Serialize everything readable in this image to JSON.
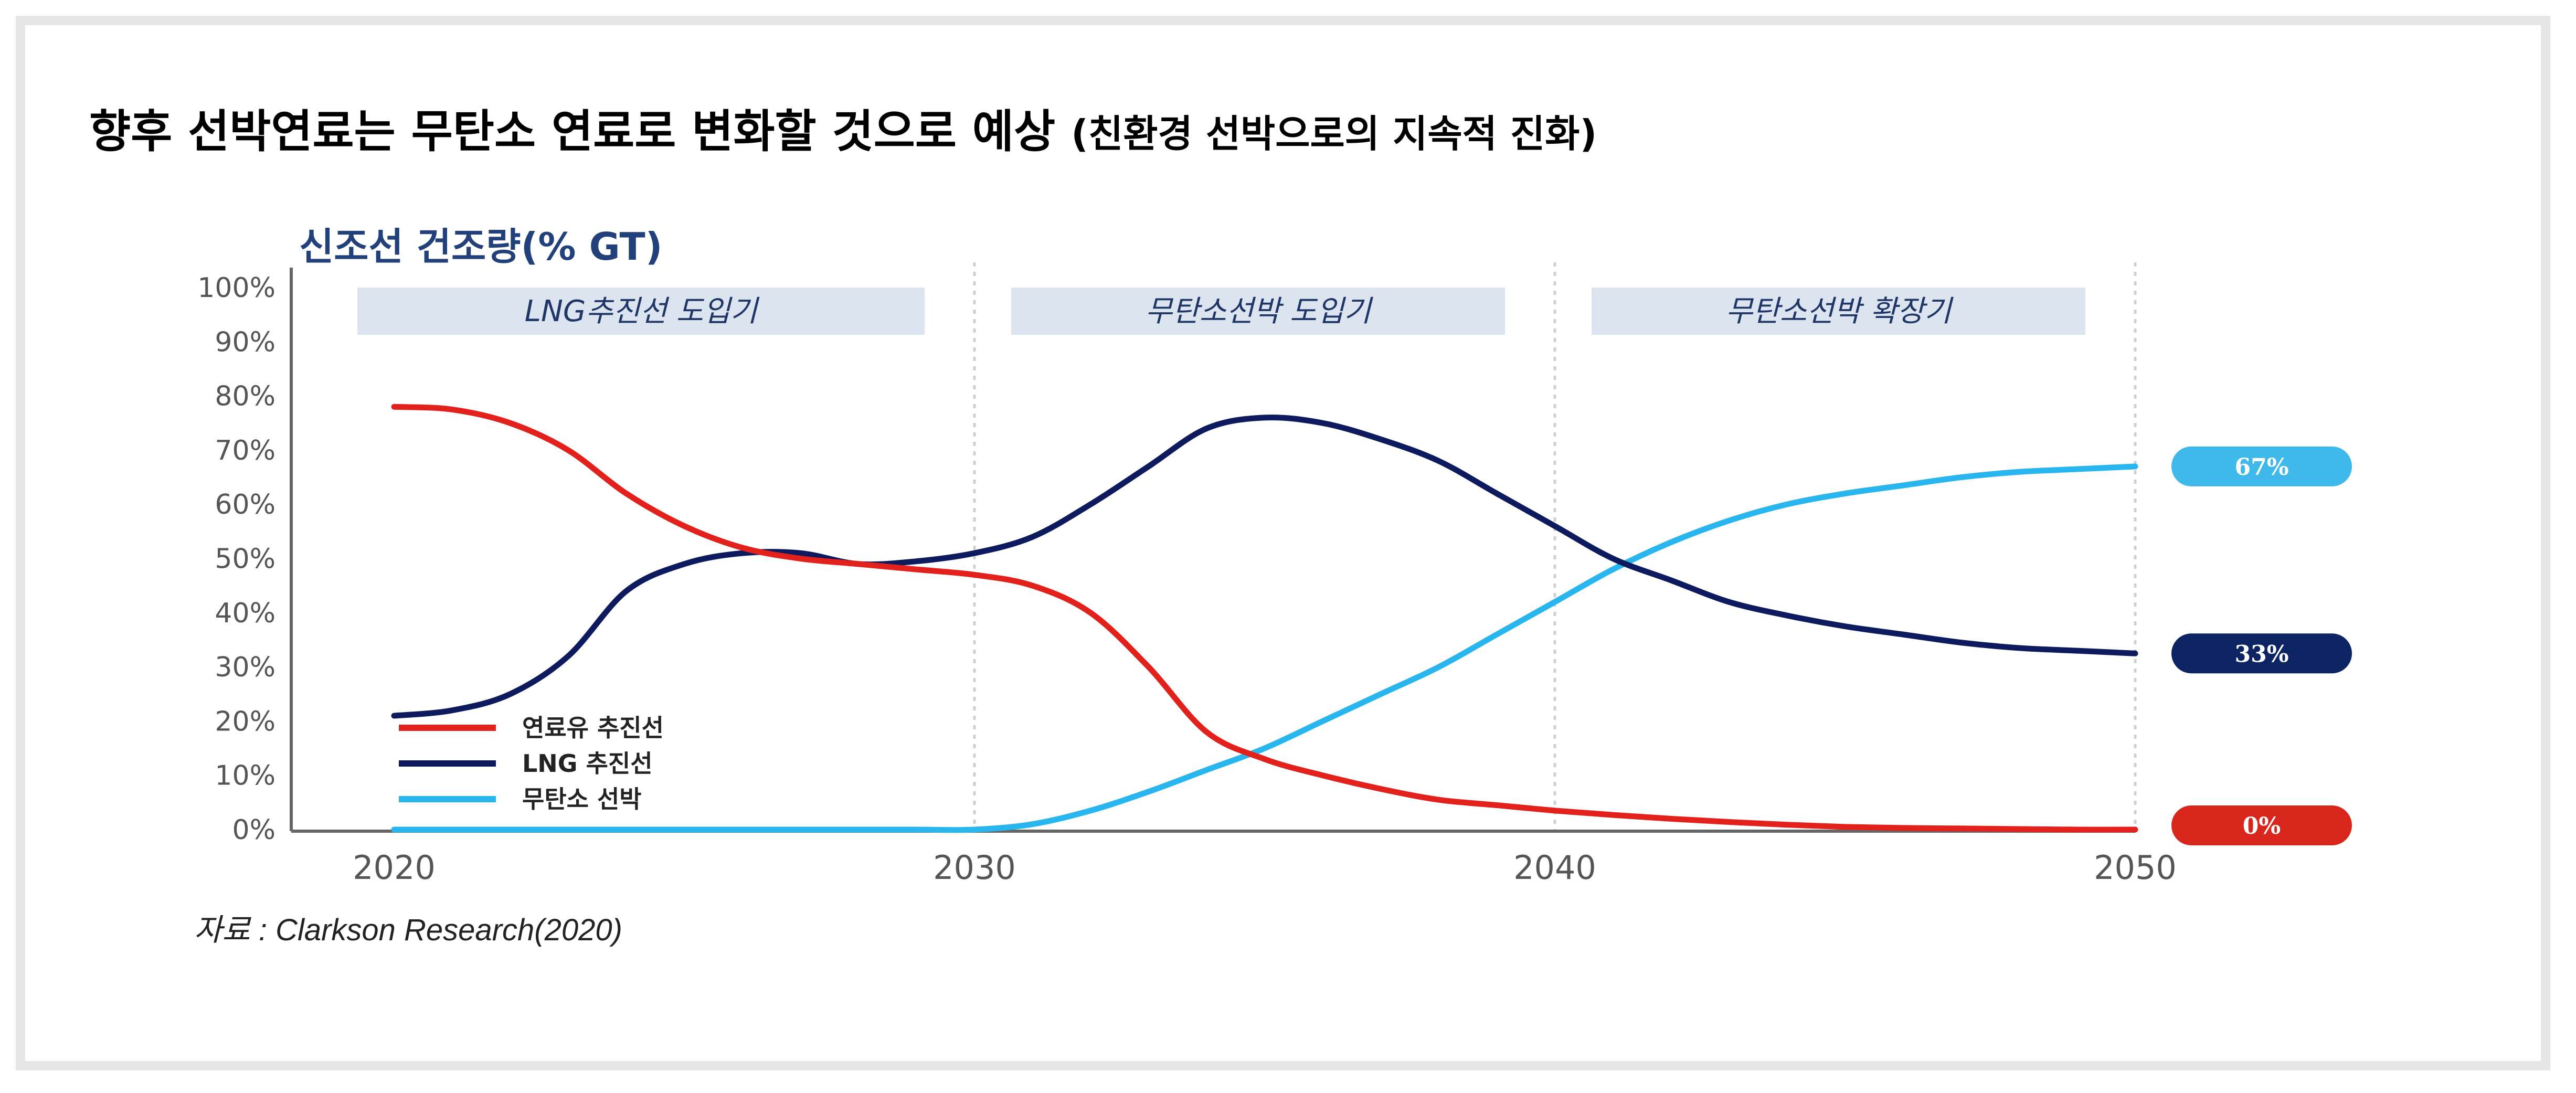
{
  "header": {
    "title": "향후 선박연료는 무탄소 연료로 변화할 것으로 예상",
    "subtitle": "(친환경 선박으로의 지속적 진화)"
  },
  "source": "자료 : Clarkson Research(2020)",
  "chart_data": {
    "type": "line",
    "title": "신조선 건조량(% GT)",
    "xlabel": "",
    "ylabel": "",
    "xlim": [
      2020,
      2050
    ],
    "ylim": [
      0,
      100
    ],
    "x_ticks": [
      "2020",
      "2030",
      "2040",
      "2050"
    ],
    "y_ticks": [
      "0%",
      "10%",
      "20%",
      "30%",
      "40%",
      "50%",
      "60%",
      "70%",
      "80%",
      "90%",
      "100%"
    ],
    "grid": "vertical dotted lines at 2030, 2040, 2050",
    "legend_position": "bottom-left",
    "phases": [
      {
        "label": "LNG추진선 도입기",
        "from": 2020,
        "to": 2030
      },
      {
        "label": "무탄소선박 도입기",
        "from": 2030,
        "to": 2040
      },
      {
        "label": "무탄소선박 확장기",
        "from": 2040,
        "to": 2050
      }
    ],
    "x": [
      2020,
      2021,
      2022,
      2023,
      2024,
      2025,
      2026,
      2027,
      2028,
      2029,
      2030,
      2031,
      2032,
      2033,
      2034,
      2035,
      2036,
      2037,
      2038,
      2039,
      2040,
      2041,
      2042,
      2043,
      2044,
      2045,
      2046,
      2047,
      2048,
      2049,
      2050
    ],
    "series": [
      {
        "name": "연료유 추진선",
        "color": "#e3211c",
        "end_label": "0%",
        "values": [
          78,
          77.5,
          75,
          70,
          62,
          56,
          52,
          50,
          49,
          48,
          47,
          45,
          40,
          30,
          18,
          13,
          10,
          7.5,
          5.5,
          4.5,
          3.5,
          2.7,
          2,
          1.4,
          0.9,
          0.5,
          0.3,
          0.2,
          0.1,
          0,
          0
        ]
      },
      {
        "name": "LNG 추진선",
        "color": "#0d1b5e",
        "end_label": "33%",
        "values": [
          21,
          22,
          25,
          32,
          44,
          49,
          51,
          51,
          49,
          49.5,
          51,
          54,
          60,
          67,
          74,
          76,
          75,
          72,
          68,
          62,
          56,
          50,
          46,
          42,
          39.5,
          37.5,
          36,
          34.5,
          33.5,
          33,
          32.5
        ]
      },
      {
        "name": "무탄소 선박",
        "color": "#29b6ef",
        "end_label": "67%",
        "values": [
          0,
          0,
          0,
          0,
          0,
          0,
          0,
          0,
          0,
          0,
          0,
          1,
          3.5,
          7,
          11,
          15,
          20,
          25,
          30,
          36,
          42,
          48,
          53,
          57,
          60,
          62,
          63.5,
          65,
          66,
          66.5,
          67
        ]
      }
    ],
    "badge_colors": [
      "#d9261c",
      "#0d2462",
      "#3fb8ea"
    ]
  }
}
